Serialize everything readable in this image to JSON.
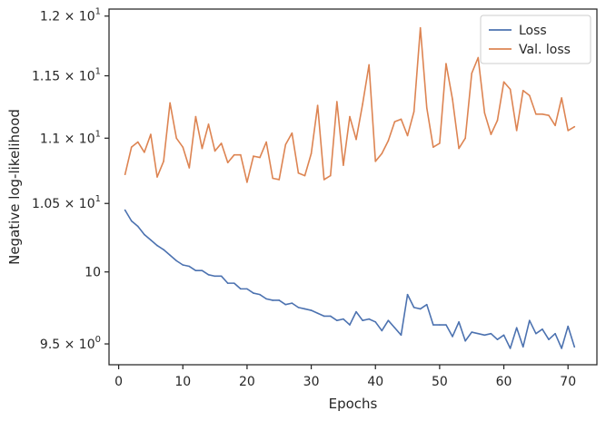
{
  "chart_data": {
    "type": "line",
    "title": "",
    "xlabel": "Epochs",
    "ylabel": "Negative log-likelihood",
    "yscale": "log",
    "xlim": [
      -1.5,
      74.5
    ],
    "ylim": [
      9.36,
      12.06
    ],
    "x_ticks": [
      0,
      10,
      20,
      30,
      40,
      50,
      60,
      70
    ],
    "x_tick_labels": [
      "0",
      "10",
      "20",
      "30",
      "40",
      "50",
      "60",
      "70"
    ],
    "y_ticks": [
      9.5,
      10.0,
      10.5,
      11.0,
      11.5,
      12.0
    ],
    "y_tick_labels": [
      {
        "mant": "9.5",
        "exp": "0"
      },
      {
        "mant": "10",
        "exp": ""
      },
      {
        "mant": "1.05",
        "exp": "1"
      },
      {
        "mant": "1.1",
        "exp": "1"
      },
      {
        "mant": "1.15",
        "exp": "1"
      },
      {
        "mant": "1.2",
        "exp": "1"
      }
    ],
    "grid": false,
    "legend_position": "top-right",
    "x": [
      1,
      2,
      3,
      4,
      5,
      6,
      7,
      8,
      9,
      10,
      11,
      12,
      13,
      14,
      15,
      16,
      17,
      18,
      19,
      20,
      21,
      22,
      23,
      24,
      25,
      26,
      27,
      28,
      29,
      30,
      31,
      32,
      33,
      34,
      35,
      36,
      37,
      38,
      39,
      40,
      41,
      42,
      43,
      44,
      45,
      46,
      47,
      48,
      49,
      50,
      51,
      52,
      53,
      54,
      55,
      56,
      57,
      58,
      59,
      60,
      61,
      62,
      63,
      64,
      65,
      66,
      67,
      68,
      69,
      70,
      71
    ],
    "series": [
      {
        "name": "Loss",
        "color": "#4c72b0",
        "values": [
          10.45,
          10.37,
          10.33,
          10.27,
          10.23,
          10.19,
          10.16,
          10.12,
          10.08,
          10.05,
          10.04,
          10.01,
          10.01,
          9.98,
          9.97,
          9.97,
          9.92,
          9.92,
          9.88,
          9.88,
          9.85,
          9.84,
          9.81,
          9.8,
          9.8,
          9.77,
          9.78,
          9.75,
          9.74,
          9.73,
          9.71,
          9.69,
          9.69,
          9.66,
          9.67,
          9.63,
          9.72,
          9.66,
          9.67,
          9.65,
          9.59,
          9.66,
          9.61,
          9.56,
          9.84,
          9.75,
          9.74,
          9.77,
          9.63,
          9.63,
          9.63,
          9.55,
          9.65,
          9.52,
          9.58,
          9.57,
          9.56,
          9.57,
          9.53,
          9.56,
          9.47,
          9.61,
          9.48,
          9.66,
          9.57,
          9.6,
          9.53,
          9.57,
          9.47,
          9.62,
          9.48
        ]
      },
      {
        "name": "Val. loss",
        "color": "#dd8452",
        "values": [
          10.72,
          10.93,
          10.97,
          10.89,
          11.03,
          10.7,
          10.82,
          11.28,
          11.0,
          10.93,
          10.77,
          11.17,
          10.92,
          11.11,
          10.9,
          10.96,
          10.81,
          10.87,
          10.87,
          10.66,
          10.86,
          10.85,
          10.97,
          10.69,
          10.68,
          10.95,
          11.04,
          10.73,
          10.71,
          10.88,
          11.26,
          10.68,
          10.71,
          11.29,
          10.79,
          11.17,
          10.99,
          11.27,
          11.59,
          10.82,
          10.88,
          10.98,
          11.13,
          11.15,
          11.02,
          11.21,
          11.9,
          11.24,
          10.93,
          10.96,
          11.6,
          11.31,
          10.92,
          11.0,
          11.52,
          11.65,
          11.2,
          11.03,
          11.14,
          11.45,
          11.39,
          11.06,
          11.38,
          11.34,
          11.19,
          11.19,
          11.18,
          11.1,
          11.32,
          11.06,
          11.09
        ]
      }
    ]
  }
}
